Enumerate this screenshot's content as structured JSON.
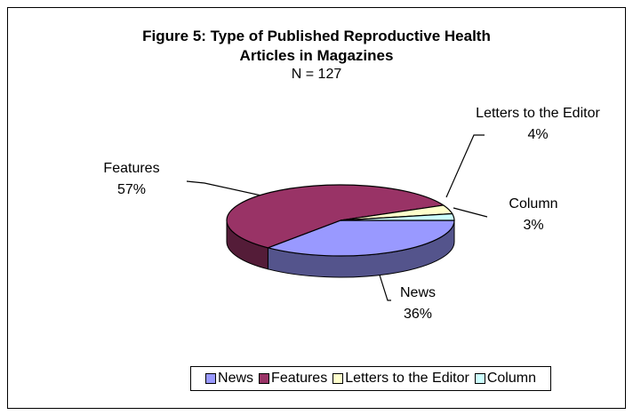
{
  "chart_data": {
    "type": "pie3d",
    "title": "Figure 5: Type of Published Reproductive Health Articles in Magazines",
    "subtitle": "N = 127",
    "categories": [
      "News",
      "Features",
      "Letters to the Editor",
      "Column"
    ],
    "values": [
      36,
      57,
      4,
      3
    ],
    "value_labels": [
      "36%",
      "57%",
      "4%",
      "3%"
    ],
    "colors": [
      "#9999ff",
      "#993366",
      "#ffffcc",
      "#ccffff"
    ],
    "legend": "bottom"
  }
}
